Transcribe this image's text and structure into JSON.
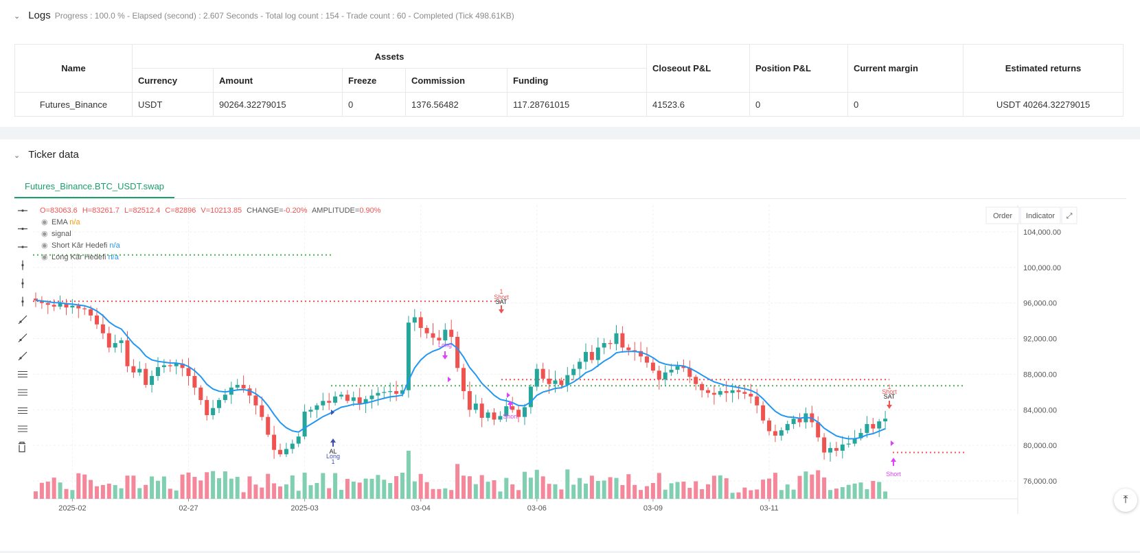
{
  "logs": {
    "title": "Logs",
    "status": "Progress : 100.0 % - Elapsed (second) : 2.607  Seconds - Total log count : 154 - Trade count : 60 - Completed (Tick 498.61KB)"
  },
  "assets_table": {
    "headers": {
      "name": "Name",
      "assets": "Assets",
      "closeout": "Closeout P&L",
      "position": "Position P&L",
      "margin": "Current margin",
      "returns": "Estimated returns"
    },
    "sub_headers": [
      "Currency",
      "Amount",
      "Freeze",
      "Commission",
      "Funding"
    ],
    "row": {
      "name": "Futures_Binance",
      "currency": "USDT",
      "amount": "90264.32279015",
      "freeze": "0",
      "commission": "1376.56482",
      "funding": "117.28761015",
      "closeout": "41523.6",
      "position": "0",
      "margin": "0",
      "returns": "USDT 40264.32279015"
    }
  },
  "ticker": {
    "title": "Ticker data",
    "tab": "Futures_Binance.BTC_USDT.swap",
    "buttons": {
      "order": "Order",
      "indicator": "Indicator"
    }
  },
  "colors": {
    "up": "#26a69a",
    "down": "#ef5350",
    "ema": "#2196f3",
    "accent": "#1a9e6a",
    "signal": "#e040fb"
  },
  "chart_data": {
    "type": "candlestick",
    "ohlc_label": {
      "o": "O=83063.6",
      "h": "H=83261.7",
      "l": "L=82512.4",
      "c": "C=82896",
      "v": "V=10213.85",
      "change_label": "CHANGE=",
      "change": "-0.20%",
      "amp_label": "AMPLITUDE=",
      "amp": "0.90%"
    },
    "legend": [
      {
        "name": "EMA",
        "value": "n/a"
      },
      {
        "name": "signal",
        "value": ""
      },
      {
        "name": "Short Kâr Hedefi",
        "value": "n/a"
      },
      {
        "name": "Long Kâr Hedefi",
        "value": "n/a"
      }
    ],
    "y_ticks": [
      "104,000.00",
      "100,000.00",
      "96,000.00",
      "92,000.00",
      "88,000.00",
      "84,000.00",
      "80,000.00",
      "76,000.00"
    ],
    "y_tick_values": [
      104000,
      100000,
      96000,
      92000,
      88000,
      84000,
      80000,
      76000
    ],
    "y_range": [
      74000,
      107000
    ],
    "x_ticks": [
      "2025-02",
      "02-27",
      "2025-03",
      "03-04",
      "03-06",
      "03-09",
      "03-11"
    ],
    "x_tick_index": [
      6,
      25,
      44,
      63,
      82,
      101,
      120
    ],
    "closes_hint": "prices per 4h bar, Feb 24 – Mar 11 2025",
    "closes": [
      96300,
      96000,
      95800,
      95600,
      96000,
      95500,
      95700,
      95400,
      95300,
      94600,
      93600,
      92600,
      91000,
      91500,
      91800,
      88900,
      88200,
      88600,
      86800,
      87800,
      88800,
      89000,
      88900,
      89200,
      88700,
      87800,
      86500,
      85100,
      83400,
      84200,
      85100,
      85700,
      86500,
      86800,
      86400,
      85600,
      84500,
      83200,
      81200,
      79500,
      79000,
      79600,
      80200,
      81000,
      83800,
      84000,
      84500,
      85000,
      84800,
      85500,
      85700,
      85000,
      85400,
      84700,
      85200,
      85600,
      85900,
      86000,
      86100,
      85800,
      86200,
      93800,
      94400,
      93200,
      92600,
      92100,
      91800,
      93000,
      92200,
      88700,
      86100,
      84000,
      84700,
      83100,
      83700,
      82900,
      83300,
      84400,
      84000,
      83200,
      84300,
      86600,
      88600,
      87500,
      86900,
      87300,
      86800,
      87900,
      88600,
      89400,
      90500,
      89600,
      91000,
      91500,
      91400,
      92600,
      91000,
      90700,
      90600,
      90000,
      89300,
      88400,
      87400,
      88200,
      88500,
      88900,
      88700,
      87700,
      86900,
      86200,
      85900,
      85700,
      86100,
      85900,
      86200,
      86000,
      85800,
      85500,
      84500,
      82800,
      81600,
      81100,
      81700,
      82400,
      83000,
      82600,
      83600,
      82600,
      80900,
      79200,
      79700,
      79400,
      80100,
      80200,
      80800,
      81400,
      82400,
      81900,
      82700,
      83000
    ],
    "volume_hint": "relative volume 0-1",
    "signals": [
      {
        "label": "SAT",
        "type": "short",
        "top": "Short",
        "count": "1"
      },
      {
        "label": "AL",
        "type": "long",
        "bottom": "Long",
        "count": "1"
      },
      {
        "label": "Long",
        "type": "long_exit"
      },
      {
        "label": "Short",
        "type": "short_exit"
      },
      {
        "label": "SAT",
        "type": "short",
        "top": "Short",
        "count": "1"
      },
      {
        "label": "Short",
        "type": "short_exit"
      }
    ]
  }
}
